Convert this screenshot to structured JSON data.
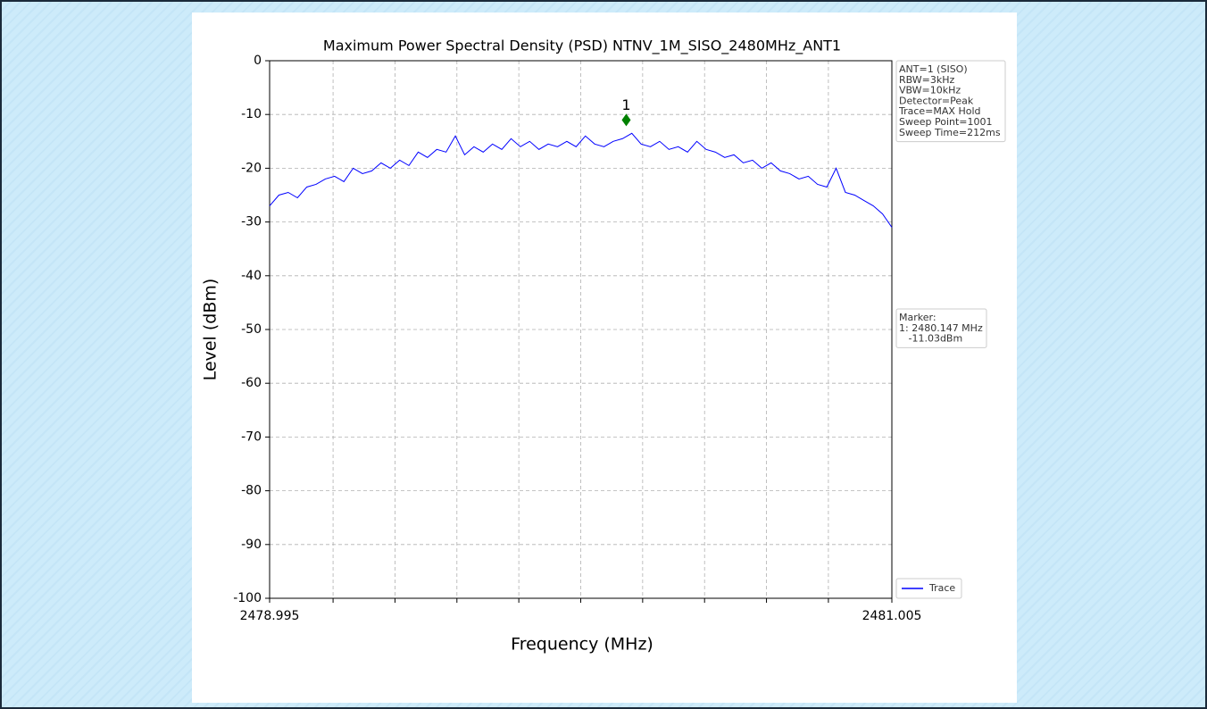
{
  "chart_data": {
    "type": "line",
    "title": "Maximum Power Spectral Density (PSD) NTNV_1M_SISO_2480MHz_ANT1",
    "xlabel": "Frequency (MHz)",
    "ylabel": "Level (dBm)",
    "xlim": [
      2478.995,
      2481.005
    ],
    "ylim": [
      -100,
      0
    ],
    "xticks": [
      2478.995,
      2481.005
    ],
    "xticks_minor": [
      2479.2,
      2479.4,
      2479.6,
      2479.8,
      2480.0,
      2480.2,
      2480.4,
      2480.6,
      2480.8
    ],
    "yticks": [
      0,
      -10,
      -20,
      -30,
      -40,
      -50,
      -60,
      -70,
      -80,
      -90,
      -100
    ],
    "grid": true,
    "x": [
      2478.995,
      2479.025,
      2479.055,
      2479.085,
      2479.115,
      2479.145,
      2479.175,
      2479.205,
      2479.235,
      2479.265,
      2479.295,
      2479.325,
      2479.355,
      2479.385,
      2479.415,
      2479.445,
      2479.475,
      2479.505,
      2479.535,
      2479.565,
      2479.595,
      2479.625,
      2479.655,
      2479.685,
      2479.715,
      2479.745,
      2479.775,
      2479.805,
      2479.835,
      2479.865,
      2479.895,
      2479.925,
      2479.955,
      2479.985,
      2480.015,
      2480.045,
      2480.075,
      2480.105,
      2480.135,
      2480.165,
      2480.195,
      2480.225,
      2480.255,
      2480.285,
      2480.315,
      2480.345,
      2480.375,
      2480.405,
      2480.435,
      2480.465,
      2480.495,
      2480.525,
      2480.555,
      2480.585,
      2480.615,
      2480.645,
      2480.675,
      2480.705,
      2480.735,
      2480.765,
      2480.795,
      2480.825,
      2480.855,
      2480.885,
      2480.915,
      2480.945,
      2480.975,
      2481.005
    ],
    "series": [
      {
        "name": "Trace",
        "color": "#0000ff",
        "values": [
          -27,
          -25,
          -24.5,
          -25.5,
          -23.5,
          -23,
          -22,
          -21.5,
          -22.5,
          -20,
          -21,
          -20.5,
          -19,
          -20,
          -18.5,
          -19.5,
          -17,
          -18,
          -16.5,
          -17,
          -14,
          -17.5,
          -16,
          -17,
          -15.5,
          -16.5,
          -14.5,
          -16,
          -15,
          -16.5,
          -15.5,
          -16,
          -15,
          -16,
          -14,
          -15.5,
          -16,
          -15,
          -14.5,
          -13.5,
          -15.5,
          -16,
          -15,
          -16.5,
          -16,
          -17,
          -15,
          -16.5,
          -17,
          -18,
          -17.5,
          -19,
          -18.5,
          -20,
          -19,
          -20.5,
          -21,
          -22,
          -21.5,
          -23,
          -23.5,
          -20,
          -24.5,
          -25,
          -26,
          -27,
          -28.5,
          -31
        ]
      }
    ],
    "marker": {
      "label": "1",
      "x": 2480.147,
      "y": -11.03,
      "color": "#008000"
    },
    "settings_box": [
      "ANT=1 (SISO)",
      "RBW=3kHz",
      "VBW=10kHz",
      "Detector=Peak",
      "Trace=MAX Hold",
      "Sweep Point=1001",
      "Sweep Time=212ms"
    ],
    "marker_box": [
      "Marker:",
      "1: 2480.147 MHz",
      "   -11.03dBm"
    ]
  }
}
